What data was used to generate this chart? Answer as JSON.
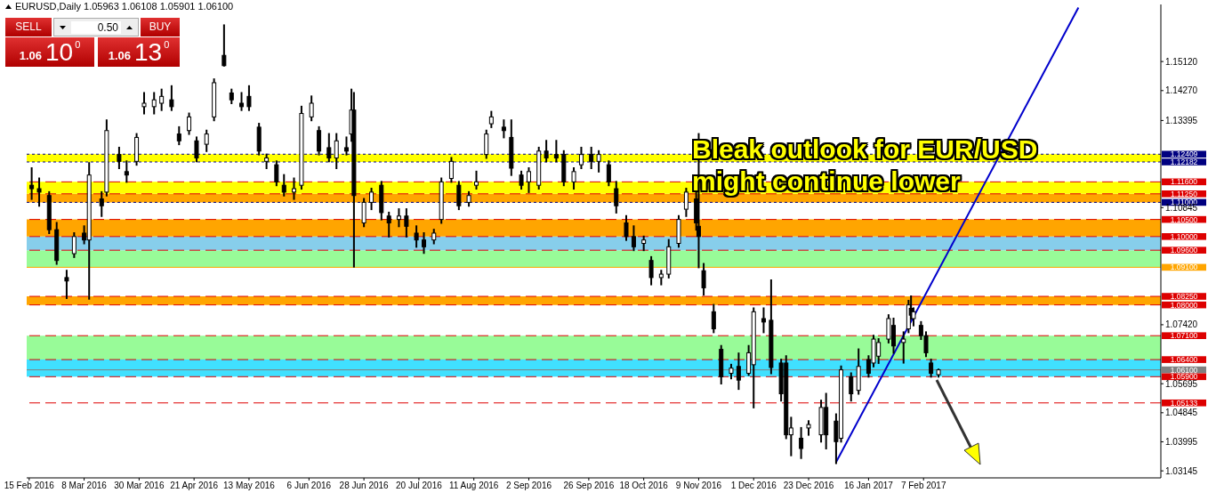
{
  "chart_data": {
    "type": "candlestick",
    "title": "EURUSD,Daily  1.05963 1.06108 1.05901 1.06100",
    "annotations": [
      "Bleak outlook for EUR/USD\nmight continue lower",
      "SELL",
      "0.50",
      "BUY",
      "1.06",
      "10",
      "0",
      "13"
    ],
    "color": "#000000",
    "x": [
      "2016-02-16",
      "2016-02-19",
      "2016-02-23",
      "2016-02-26",
      "2016-03-01",
      "2016-03-04",
      "2016-03-08",
      "2016-03-10",
      "2016-03-15",
      "2016-03-17",
      "2016-03-22",
      "2016-03-25",
      "2016-03-29",
      "2016-04-01",
      "2016-04-05",
      "2016-04-08",
      "2016-04-12",
      "2016-04-15",
      "2016-04-19",
      "2016-04-22",
      "2016-04-26",
      "2016-04-29",
      "2016-05-03",
      "2016-05-06",
      "2016-05-10",
      "2016-05-13",
      "2016-05-17",
      "2016-05-20",
      "2016-05-24",
      "2016-05-27",
      "2016-05-31",
      "2016-06-03",
      "2016-06-07",
      "2016-06-10",
      "2016-06-14",
      "2016-06-17",
      "2016-06-21",
      "2016-06-23",
      "2016-06-24",
      "2016-06-28",
      "2016-07-01",
      "2016-07-05",
      "2016-07-08",
      "2016-07-12",
      "2016-07-15",
      "2016-07-19",
      "2016-07-22",
      "2016-07-26",
      "2016-07-29",
      "2016-08-02",
      "2016-08-05",
      "2016-08-09",
      "2016-08-12",
      "2016-08-16",
      "2016-08-18",
      "2016-08-23",
      "2016-08-26",
      "2016-08-30",
      "2016-09-02",
      "2016-09-06",
      "2016-09-09",
      "2016-09-13",
      "2016-09-16",
      "2016-09-20",
      "2016-09-23",
      "2016-09-27",
      "2016-09-30",
      "2016-10-04",
      "2016-10-07",
      "2016-10-11",
      "2016-10-14",
      "2016-10-18",
      "2016-10-21",
      "2016-10-25",
      "2016-10-28",
      "2016-11-01",
      "2016-11-04",
      "2016-11-08",
      "2016-11-09",
      "2016-11-11",
      "2016-11-15",
      "2016-11-18",
      "2016-11-22",
      "2016-11-25",
      "2016-11-29",
      "2016-12-01",
      "2016-12-05",
      "2016-12-08",
      "2016-12-12",
      "2016-12-14",
      "2016-12-16",
      "2016-12-20",
      "2016-12-23",
      "2016-12-28",
      "2016-12-30",
      "2017-01-03",
      "2017-01-05",
      "2017-01-09",
      "2017-01-12",
      "2017-01-16",
      "2017-01-18",
      "2017-01-20",
      "2017-01-24",
      "2017-01-26",
      "2017-01-30",
      "2017-02-01",
      "2017-02-02",
      "2017-02-03",
      "2017-02-06",
      "2017-02-08",
      "2017-02-10",
      "2017-02-13"
    ],
    "ohlc": [
      [
        1.115,
        1.12,
        1.111,
        1.114
      ],
      [
        1.114,
        1.117,
        1.109,
        1.113
      ],
      [
        1.112,
        1.113,
        1.101,
        1.102
      ],
      [
        1.102,
        1.104,
        1.092,
        1.093
      ],
      [
        1.088,
        1.09,
        1.082,
        1.087
      ],
      [
        1.095,
        1.101,
        1.094,
        1.1
      ],
      [
        1.101,
        1.103,
        1.098,
        1.099
      ],
      [
        1.099,
        1.1215,
        1.0818,
        1.118
      ],
      [
        1.111,
        1.113,
        1.106,
        1.109
      ],
      [
        1.113,
        1.134,
        1.112,
        1.131
      ],
      [
        1.124,
        1.126,
        1.12,
        1.122
      ],
      [
        1.119,
        1.122,
        1.116,
        1.118
      ],
      [
        1.122,
        1.13,
        1.121,
        1.129
      ],
      [
        1.138,
        1.142,
        1.136,
        1.139
      ],
      [
        1.138,
        1.142,
        1.136,
        1.14
      ],
      [
        1.139,
        1.143,
        1.137,
        1.141
      ],
      [
        1.14,
        1.144,
        1.137,
        1.138
      ],
      [
        1.13,
        1.132,
        1.127,
        1.128
      ],
      [
        1.131,
        1.136,
        1.13,
        1.135
      ],
      [
        1.128,
        1.129,
        1.122,
        1.123
      ],
      [
        1.127,
        1.131,
        1.125,
        1.13
      ],
      [
        1.135,
        1.146,
        1.134,
        1.145
      ],
      [
        1.153,
        1.1618,
        1.15,
        1.15
      ],
      [
        1.142,
        1.143,
        1.139,
        1.14
      ],
      [
        1.139,
        1.142,
        1.137,
        1.138
      ],
      [
        1.141,
        1.144,
        1.137,
        1.138
      ],
      [
        1.132,
        1.133,
        1.124,
        1.125
      ],
      [
        1.122,
        1.124,
        1.12,
        1.123
      ],
      [
        1.121,
        1.122,
        1.115,
        1.116
      ],
      [
        1.115,
        1.118,
        1.112,
        1.113
      ],
      [
        1.113,
        1.117,
        1.111,
        1.114
      ],
      [
        1.115,
        1.138,
        1.114,
        1.136
      ],
      [
        1.135,
        1.141,
        1.134,
        1.139
      ],
      [
        1.131,
        1.132,
        1.124,
        1.125
      ],
      [
        1.126,
        1.13,
        1.122,
        1.123
      ],
      [
        1.123,
        1.13,
        1.12,
        1.128
      ],
      [
        1.126,
        1.129,
        1.124,
        1.125
      ],
      [
        1.13,
        1.143,
        1.128,
        1.137
      ],
      [
        1.137,
        1.142,
        1.0912,
        1.112
      ],
      [
        1.104,
        1.111,
        1.103,
        1.11
      ],
      [
        1.11,
        1.114,
        1.108,
        1.113
      ],
      [
        1.115,
        1.116,
        1.105,
        1.107
      ],
      [
        1.106,
        1.107,
        1.1,
        1.104
      ],
      [
        1.105,
        1.108,
        1.103,
        1.106
      ],
      [
        1.106,
        1.108,
        1.1,
        1.103
      ],
      [
        1.101,
        1.103,
        1.097,
        1.099
      ],
      [
        1.099,
        1.101,
        1.0952,
        1.097
      ],
      [
        1.099,
        1.102,
        1.098,
        1.101
      ],
      [
        1.105,
        1.117,
        1.104,
        1.116
      ],
      [
        1.117,
        1.123,
        1.116,
        1.122
      ],
      [
        1.115,
        1.116,
        1.108,
        1.109
      ],
      [
        1.11,
        1.113,
        1.109,
        1.112
      ],
      [
        1.115,
        1.119,
        1.114,
        1.116
      ],
      [
        1.124,
        1.131,
        1.123,
        1.13
      ],
      [
        1.133,
        1.1365,
        1.132,
        1.135
      ],
      [
        1.132,
        1.134,
        1.129,
        1.131
      ],
      [
        1.129,
        1.134,
        1.118,
        1.12
      ],
      [
        1.118,
        1.119,
        1.114,
        1.115
      ],
      [
        1.116,
        1.12,
        1.113,
        1.119
      ],
      [
        1.115,
        1.126,
        1.114,
        1.125
      ],
      [
        1.125,
        1.128,
        1.122,
        1.123
      ],
      [
        1.124,
        1.128,
        1.122,
        1.123
      ],
      [
        1.124,
        1.125,
        1.115,
        1.116
      ],
      [
        1.116,
        1.12,
        1.114,
        1.119
      ],
      [
        1.121,
        1.126,
        1.12,
        1.124
      ],
      [
        1.124,
        1.126,
        1.12,
        1.122
      ],
      [
        1.122,
        1.125,
        1.119,
        1.124
      ],
      [
        1.121,
        1.122,
        1.115,
        1.116
      ],
      [
        1.114,
        1.116,
        1.107,
        1.109
      ],
      [
        1.104,
        1.106,
        1.099,
        1.1
      ],
      [
        1.1,
        1.103,
        1.096,
        1.097
      ],
      [
        1.098,
        1.1,
        1.096,
        1.099
      ],
      [
        1.093,
        1.094,
        1.086,
        1.088
      ],
      [
        1.088,
        1.09,
        1.086,
        1.089
      ],
      [
        1.089,
        1.099,
        1.088,
        1.097
      ],
      [
        1.098,
        1.106,
        1.097,
        1.105
      ],
      [
        1.108,
        1.114,
        1.106,
        1.113
      ],
      [
        1.111,
        1.113,
        1.102,
        1.104
      ],
      [
        1.103,
        1.13,
        1.091,
        1.1
      ],
      [
        1.09,
        1.092,
        1.083,
        1.085
      ],
      [
        1.078,
        1.08,
        1.072,
        1.073
      ],
      [
        1.067,
        1.068,
        1.057,
        1.059
      ],
      [
        1.06,
        1.0625,
        1.0585,
        1.0615
      ],
      [
        1.062,
        1.0658,
        1.0554,
        1.058
      ],
      [
        1.06,
        1.068,
        1.0595,
        1.066
      ],
      [
        1.0625,
        1.079,
        1.05,
        1.078
      ],
      [
        1.076,
        1.079,
        1.072,
        1.075
      ],
      [
        1.0755,
        1.0872,
        1.06,
        1.0617
      ],
      [
        1.063,
        1.064,
        1.052,
        1.054
      ],
      [
        1.063,
        1.065,
        1.041,
        1.042
      ],
      [
        1.042,
        1.047,
        1.036,
        1.044
      ],
      [
        1.041,
        1.044,
        1.0352,
        1.038
      ],
      [
        1.044,
        1.046,
        1.042,
        1.045
      ],
      [
        1.042,
        1.052,
        1.04,
        1.05
      ],
      [
        1.05,
        1.054,
        1.038,
        1.042
      ],
      [
        1.046,
        1.048,
        1.0337,
        1.04
      ],
      [
        1.041,
        1.062,
        1.04,
        1.061
      ],
      [
        1.059,
        1.06,
        1.052,
        1.054
      ],
      [
        1.055,
        1.067,
        1.054,
        1.062
      ],
      [
        1.064,
        1.065,
        1.059,
        1.06
      ],
      [
        1.063,
        1.071,
        1.062,
        1.07
      ],
      [
        1.065,
        1.07,
        1.063,
        1.069
      ],
      [
        1.07,
        1.077,
        1.069,
        1.076
      ],
      [
        1.074,
        1.076,
        1.066,
        1.068
      ],
      [
        1.069,
        1.072,
        1.0631,
        1.07
      ],
      [
        1.073,
        1.0812,
        1.072,
        1.08
      ],
      [
        1.079,
        1.0825,
        1.076,
        1.077
      ],
      [
        1.076,
        1.079,
        1.074,
        1.078
      ],
      [
        1.074,
        1.075,
        1.07,
        1.071
      ],
      [
        1.071,
        1.072,
        1.065,
        1.066
      ],
      [
        1.063,
        1.064,
        1.059,
        1.06
      ],
      [
        1.0596,
        1.0611,
        1.059,
        1.061
      ]
    ],
    "series": [
      {
        "type": "line",
        "color": "#0000cc",
        "x": [
          "2017-01-03",
          "2017-04-10"
        ],
        "values": [
          1.034,
          1.167
        ]
      }
    ],
    "xlim": [
      "2016-02-14",
      "2017-05-13"
    ],
    "xticks": [
      {
        "value": "2016-02-15",
        "label": "15 Feb 2016"
      },
      {
        "value": "2016-03-08",
        "label": "8 Mar 2016"
      },
      {
        "value": "2016-03-30",
        "label": "30 Mar 2016"
      },
      {
        "value": "2016-04-21",
        "label": "21 Apr 2016"
      },
      {
        "value": "2016-05-13",
        "label": "13 May 2016"
      },
      {
        "value": "2016-06-06",
        "label": "6 Jun 2016"
      },
      {
        "value": "2016-06-28",
        "label": "28 Jun 2016"
      },
      {
        "value": "2016-07-20",
        "label": "20 Jul 2016"
      },
      {
        "value": "2016-08-11",
        "label": "11 Aug 2016"
      },
      {
        "value": "2016-09-02",
        "label": "2 Sep 2016"
      },
      {
        "value": "2016-09-26",
        "label": "26 Sep 2016"
      },
      {
        "value": "2016-10-18",
        "label": "18 Oct 2016"
      },
      {
        "value": "2016-11-09",
        "label": "9 Nov 2016"
      },
      {
        "value": "2016-12-01",
        "label": "1 Dec 2016"
      },
      {
        "value": "2016-12-23",
        "label": "23 Dec 2016"
      },
      {
        "value": "2017-01-16",
        "label": "16 Jan 2017"
      },
      {
        "value": "2017-02-07",
        "label": "7 Feb 2017"
      }
    ],
    "ylim": [
      1.0294,
      1.1679
    ],
    "yticks": [
      {
        "value": 1.1512,
        "label": "1.15120"
      },
      {
        "value": 1.1427,
        "label": "1.14270"
      },
      {
        "value": 1.13395,
        "label": "1.13395"
      },
      {
        "value": 1.10845,
        "label": "1.10845"
      },
      {
        "value": 1.0742,
        "label": "1.07420"
      },
      {
        "value": 1.05695,
        "label": "1.05695"
      },
      {
        "value": 1.04845,
        "label": "1.04845"
      },
      {
        "value": 1.03995,
        "label": "1.03995"
      },
      {
        "value": 1.03145,
        "label": "1.03145"
      }
    ],
    "ref_lines": [
      {
        "axis": "y",
        "value": 1.12409,
        "label": "1.12409",
        "color": "#000080",
        "line_style": "dotted"
      },
      {
        "axis": "y",
        "value": 1.12182,
        "label": "1.12182",
        "color": "#000080",
        "line_style": "dotted"
      },
      {
        "axis": "y",
        "value": 1.116,
        "label": "1.11600",
        "color": "#dd0000",
        "line_style": "dashed"
      },
      {
        "axis": "y",
        "value": 1.1125,
        "label": "1.11250",
        "color": "#dd0000",
        "line_style": "dashed"
      },
      {
        "axis": "y",
        "value": 1.11,
        "label": "1.11000",
        "color": "#000080",
        "line_style": "dotted"
      },
      {
        "axis": "y",
        "value": 1.105,
        "label": "1.10500",
        "color": "#dd0000",
        "line_style": "dashed"
      },
      {
        "axis": "y",
        "value": 1.1,
        "label": "1.10000",
        "color": "#dd0000",
        "line_style": "dashed"
      },
      {
        "axis": "y",
        "value": 1.096,
        "label": "1.09600",
        "color": "#dd0000",
        "line_style": "dashed"
      },
      {
        "axis": "y",
        "value": 1.091,
        "label": "1.09100",
        "color": "#ffa500",
        "line_style": "solid"
      },
      {
        "axis": "y",
        "value": 1.0825,
        "label": "1.08250",
        "color": "#dd0000",
        "line_style": "dashed"
      },
      {
        "axis": "y",
        "value": 1.08,
        "label": "1.08000",
        "color": "#dd0000",
        "line_style": "dashed"
      },
      {
        "axis": "y",
        "value": 1.071,
        "label": "1.07100",
        "color": "#dd0000",
        "line_style": "dashed"
      },
      {
        "axis": "y",
        "value": 1.064,
        "label": "1.06400",
        "color": "#dd0000",
        "line_style": "dashed"
      },
      {
        "axis": "y",
        "value": 1.061,
        "label": "1.06100",
        "color": "#808080",
        "line_style": "solid"
      },
      {
        "axis": "y",
        "value": 1.059,
        "label": "1.05900",
        "color": "#dd0000",
        "line_style": "dashed"
      },
      {
        "axis": "y",
        "value": 1.05133,
        "label": "1.05133",
        "color": "#dd0000",
        "line_style": "dashed"
      }
    ],
    "bands": [
      {
        "axis": "y",
        "from": 1.08,
        "to": 1.0825,
        "color": "#ffa500"
      },
      {
        "axis": "y",
        "from": 1.091,
        "to": 1.096,
        "color": "#98fb98"
      },
      {
        "axis": "y",
        "from": 1.096,
        "to": 1.1,
        "color": "#87ceeb"
      },
      {
        "axis": "y",
        "from": 1.1,
        "to": 1.105,
        "color": "#ffa500"
      },
      {
        "axis": "y",
        "from": 1.11,
        "to": 1.1125,
        "color": "#ffa500"
      },
      {
        "axis": "y",
        "from": 1.1218,
        "to": 1.1241,
        "color": "#ffff00"
      },
      {
        "axis": "y",
        "from": 1.1125,
        "to": 1.116,
        "color": "#ffff00"
      },
      {
        "axis": "y",
        "from": 1.064,
        "to": 1.071,
        "color": "#98fb98"
      },
      {
        "axis": "y",
        "from": 1.059,
        "to": 1.064,
        "color": "#40e0ff"
      }
    ]
  }
}
